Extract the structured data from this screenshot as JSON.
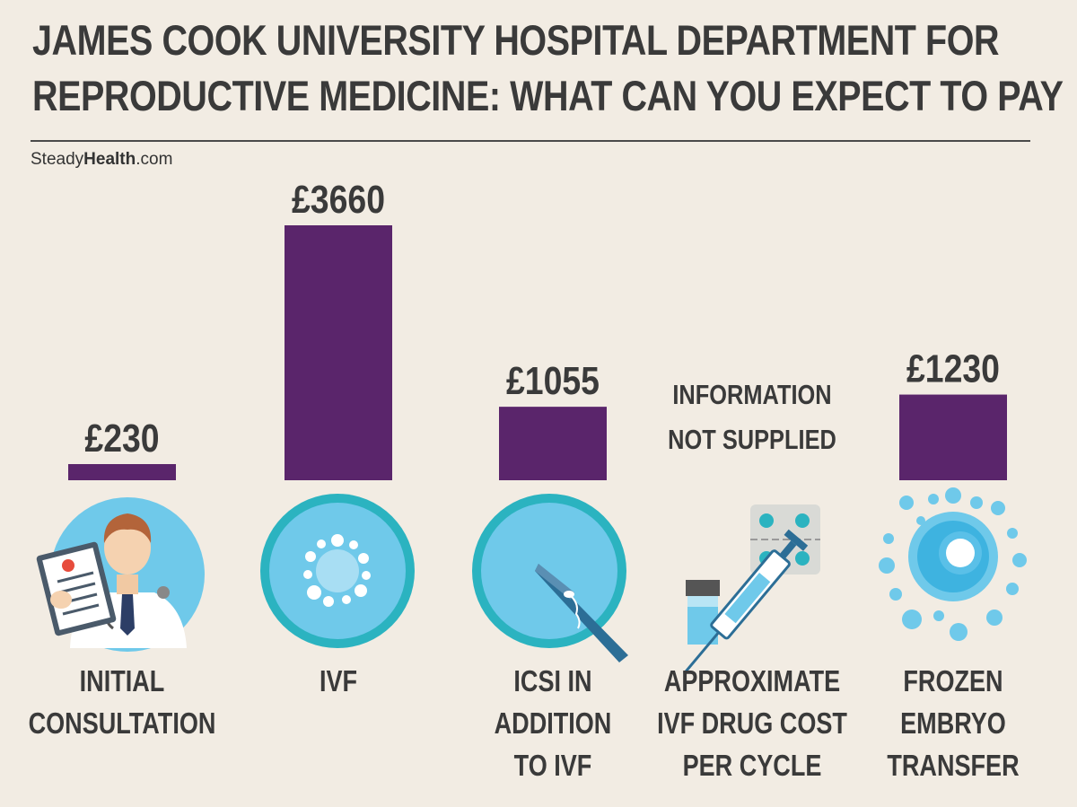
{
  "header": {
    "title_line1": "JAMES COOK UNIVERSITY HOSPITAL DEPARTMENT FOR",
    "title_line2": "REPRODUCTIVE MEDICINE: WHAT CAN YOU EXPECT TO PAY",
    "brand_regular": "Steady",
    "brand_bold": "Health",
    "brand_suffix": ".com"
  },
  "colors": {
    "background": "#f2ece3",
    "bar": "#5a256b",
    "icon_dark": "#2bb3c0",
    "icon_light": "#6fc9ea",
    "text": "#3a3a3a"
  },
  "chart_data": {
    "type": "bar",
    "title": "JAMES COOK UNIVERSITY HOSPITAL DEPARTMENT FOR REPRODUCTIVE MEDICINE: WHAT CAN YOU EXPECT TO PAY",
    "currency": "£",
    "categories": [
      [
        "INITIAL",
        "CONSULTATION"
      ],
      [
        "IVF"
      ],
      [
        "ICSI IN",
        "ADDITION",
        "TO IVF"
      ],
      [
        "APPROXIMATE",
        "IVF DRUG COST",
        "PER CYCLE"
      ],
      [
        "FROZEN",
        "EMBRYO",
        "TRANSFER"
      ]
    ],
    "values": [
      230,
      3660,
      1055,
      null,
      1230
    ],
    "value_labels": [
      "£230",
      "£3660",
      "£1055",
      "",
      "£1230"
    ],
    "missing_label": [
      "INFORMATION",
      "NOT SUPPLIED"
    ],
    "icons": [
      "doctor-icon",
      "ivf-cell-icon",
      "icsi-needle-icon",
      "syringe-pills-icon",
      "frozen-embryo-icon"
    ],
    "ylim": [
      0,
      3660
    ],
    "grid": false,
    "legend": "none"
  }
}
